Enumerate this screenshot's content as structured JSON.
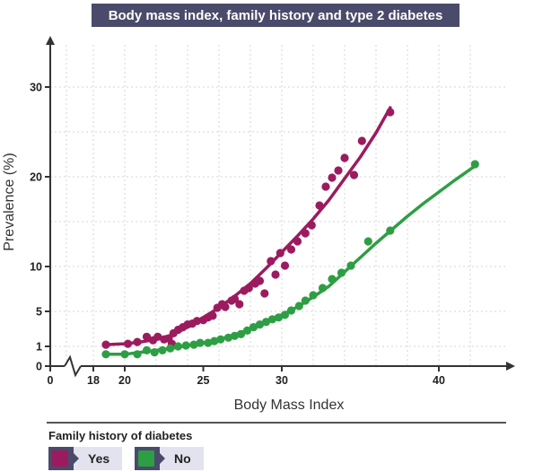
{
  "chart_data": {
    "type": "scatter",
    "title": "Body mass index, family history and type 2 diabetes",
    "xlabel": "Body Mass Index",
    "ylabel": "Prevalence (%)",
    "xlim": [
      0,
      43.5
    ],
    "ylim": [
      0,
      33
    ],
    "x_ticks": [
      0,
      18,
      20,
      25,
      30,
      40
    ],
    "y_ticks": [
      0,
      1,
      5,
      10,
      20,
      30
    ],
    "axis_break": "x between 0 and 18",
    "grid": true,
    "legend_title": "Family history of diabetes",
    "legend_position": "bottom-left",
    "series": [
      {
        "name": "Yes",
        "color": "#9c1b5e",
        "points": [
          [
            18.8,
            1.2
          ],
          [
            20.2,
            1.3
          ],
          [
            20.8,
            1.5
          ],
          [
            21.4,
            2.1
          ],
          [
            21.8,
            1.7
          ],
          [
            22.1,
            2.1
          ],
          [
            22.5,
            1.8
          ],
          [
            22.8,
            1.9
          ],
          [
            23.0,
            1.3
          ],
          [
            23.1,
            2.5
          ],
          [
            23.4,
            2.9
          ],
          [
            23.7,
            3.2
          ],
          [
            24.0,
            3.5
          ],
          [
            24.3,
            3.6
          ],
          [
            24.6,
            3.9
          ],
          [
            25.0,
            4.0
          ],
          [
            25.3,
            4.3
          ],
          [
            25.6,
            4.5
          ],
          [
            25.9,
            5.4
          ],
          [
            26.2,
            5.8
          ],
          [
            26.4,
            5.5
          ],
          [
            26.8,
            6.2
          ],
          [
            27.0,
            6.4
          ],
          [
            27.3,
            5.8
          ],
          [
            27.6,
            7.3
          ],
          [
            27.9,
            7.6
          ],
          [
            28.3,
            8.1
          ],
          [
            28.6,
            8.4
          ],
          [
            28.9,
            7.0
          ],
          [
            29.3,
            10.6
          ],
          [
            29.6,
            9.1
          ],
          [
            29.9,
            11.5
          ],
          [
            30.2,
            10.1
          ],
          [
            30.6,
            11.9
          ],
          [
            31.0,
            12.8
          ],
          [
            31.5,
            13.7
          ],
          [
            31.9,
            14.6
          ],
          [
            32.4,
            16.8
          ],
          [
            32.8,
            18.9
          ],
          [
            33.2,
            19.9
          ],
          [
            33.6,
            20.7
          ],
          [
            34.0,
            22.1
          ],
          [
            34.6,
            20.2
          ],
          [
            35.1,
            24.0
          ],
          [
            36.9,
            27.2
          ]
        ],
        "trend": [
          [
            18.8,
            1.2
          ],
          [
            20,
            1.3
          ],
          [
            21,
            1.5
          ],
          [
            22,
            1.8
          ],
          [
            23,
            2.3
          ],
          [
            24,
            3.2
          ],
          [
            25,
            4.3
          ],
          [
            26,
            5.4
          ],
          [
            27,
            6.7
          ],
          [
            28,
            8.1
          ],
          [
            29,
            9.8
          ],
          [
            30,
            11.6
          ],
          [
            31,
            13.4
          ],
          [
            32,
            15.3
          ],
          [
            33,
            17.4
          ],
          [
            34,
            19.8
          ],
          [
            35,
            22.2
          ],
          [
            36,
            24.9
          ],
          [
            36.9,
            27.7
          ]
        ]
      },
      {
        "name": "No",
        "color": "#2e9e44",
        "points": [
          [
            18.8,
            0.6
          ],
          [
            20.0,
            0.6
          ],
          [
            20.8,
            0.6
          ],
          [
            21.4,
            0.8
          ],
          [
            21.9,
            0.7
          ],
          [
            22.4,
            0.8
          ],
          [
            22.9,
            0.9
          ],
          [
            23.4,
            1.0
          ],
          [
            23.9,
            1.1
          ],
          [
            24.4,
            1.2
          ],
          [
            24.8,
            1.4
          ],
          [
            25.3,
            1.4
          ],
          [
            25.7,
            1.6
          ],
          [
            26.1,
            1.8
          ],
          [
            26.6,
            2.0
          ],
          [
            27.0,
            2.2
          ],
          [
            27.4,
            2.4
          ],
          [
            27.8,
            2.8
          ],
          [
            28.2,
            3.2
          ],
          [
            28.6,
            3.5
          ],
          [
            29.0,
            3.8
          ],
          [
            29.4,
            4.1
          ],
          [
            29.8,
            4.3
          ],
          [
            30.2,
            4.6
          ],
          [
            30.6,
            5.1
          ],
          [
            31.1,
            5.6
          ],
          [
            31.5,
            6.2
          ],
          [
            32.0,
            6.8
          ],
          [
            32.6,
            7.6
          ],
          [
            33.2,
            8.6
          ],
          [
            33.8,
            9.3
          ],
          [
            34.4,
            10.1
          ],
          [
            35.5,
            12.8
          ],
          [
            36.9,
            14.0
          ],
          [
            42.3,
            21.4
          ]
        ],
        "trend": [
          [
            18.8,
            0.6
          ],
          [
            20,
            0.6
          ],
          [
            21,
            0.7
          ],
          [
            22,
            0.8
          ],
          [
            23,
            0.9
          ],
          [
            24,
            1.1
          ],
          [
            25,
            1.4
          ],
          [
            26,
            1.8
          ],
          [
            27,
            2.3
          ],
          [
            28,
            3.0
          ],
          [
            29,
            3.8
          ],
          [
            30,
            4.6
          ],
          [
            31,
            5.5
          ],
          [
            32,
            6.6
          ],
          [
            33,
            7.8
          ],
          [
            34,
            9.4
          ],
          [
            35,
            11.0
          ],
          [
            36,
            12.6
          ],
          [
            37,
            14.1
          ],
          [
            38,
            15.6
          ],
          [
            39,
            17.0
          ],
          [
            40,
            18.3
          ],
          [
            41,
            19.6
          ],
          [
            42.3,
            21.2
          ]
        ]
      }
    ]
  }
}
